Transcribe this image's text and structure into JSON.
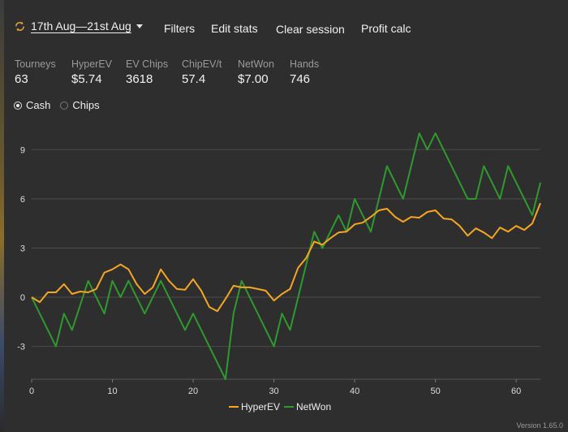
{
  "toolbar": {
    "date_range": "17th Aug—21st Aug",
    "filters": "Filters",
    "edit_stats": "Edit stats",
    "clear_session": "Clear session",
    "profit_calc": "Profit calc"
  },
  "stats": [
    {
      "name": "Tourneys",
      "value": "63"
    },
    {
      "name": "HyperEV",
      "value": "$5.74"
    },
    {
      "name": "EV Chips",
      "value": "3618"
    },
    {
      "name": "ChipEV/t",
      "value": "57.4"
    },
    {
      "name": "NetWon",
      "value": "$7.00"
    },
    {
      "name": "Hands",
      "value": "746"
    }
  ],
  "mode": {
    "options": [
      "Cash",
      "Chips"
    ],
    "selected": "Cash"
  },
  "version": "Version 1.65.0",
  "colors": {
    "hyperev": "#f5a623",
    "netwon": "#2e9a2e",
    "grid": "#4a4a4a",
    "axis_text": "#dddddd"
  },
  "chart_data": {
    "type": "line",
    "xlim": [
      0,
      63
    ],
    "ylim": [
      -5,
      10.5
    ],
    "xticks": [
      0,
      10,
      20,
      30,
      40,
      50,
      60
    ],
    "yticks": [
      -3,
      0,
      3,
      6,
      9
    ],
    "grid": true,
    "legend_position": "bottom-center",
    "series": [
      {
        "name": "HyperEV",
        "color": "#f5a623",
        "x": [
          0,
          1,
          2,
          3,
          4,
          5,
          6,
          7,
          8,
          9,
          10,
          11,
          12,
          13,
          14,
          15,
          16,
          17,
          18,
          19,
          20,
          21,
          22,
          23,
          24,
          25,
          26,
          27,
          28,
          29,
          30,
          31,
          32,
          33,
          34,
          35,
          36,
          37,
          38,
          39,
          40,
          41,
          42,
          43,
          44,
          45,
          46,
          47,
          48,
          49,
          50,
          51,
          52,
          53,
          54,
          55,
          56,
          57,
          58,
          59,
          60,
          61,
          62,
          63
        ],
        "values": [
          0,
          -0.3,
          0.3,
          0.3,
          0.8,
          0.2,
          0.35,
          0.3,
          0.5,
          1.5,
          1.7,
          2.0,
          1.7,
          0.8,
          0.2,
          0.6,
          1.7,
          1.0,
          0.5,
          0.45,
          1.1,
          0.4,
          -0.6,
          -0.85,
          -0.1,
          0.7,
          0.6,
          0.6,
          0.5,
          0.4,
          -0.2,
          0.2,
          0.5,
          1.8,
          2.4,
          3.4,
          3.2,
          3.6,
          3.95,
          4.0,
          4.45,
          4.55,
          4.9,
          5.3,
          5.4,
          4.9,
          4.6,
          4.9,
          4.85,
          5.2,
          5.3,
          4.8,
          4.75,
          4.35,
          3.75,
          4.2,
          3.95,
          3.6,
          4.25,
          4.0,
          4.35,
          4.1,
          4.5,
          5.74
        ]
      },
      {
        "name": "NetWon",
        "color": "#2e9a2e",
        "x": [
          0,
          3,
          4,
          5,
          7,
          9,
          10,
          11,
          12,
          14,
          16,
          19,
          20,
          24,
          25,
          26,
          30,
          31,
          32,
          35,
          36,
          38,
          39,
          40,
          41,
          42,
          43,
          44,
          46,
          48,
          49,
          50,
          54,
          55,
          56,
          57,
          58,
          59,
          60,
          61,
          62,
          63
        ],
        "values": [
          0,
          -3,
          -1,
          -2,
          1,
          -1,
          1,
          0,
          1,
          -1,
          1,
          -2,
          -1,
          -5,
          -1,
          1,
          -3,
          -1,
          -2,
          4,
          3,
          5,
          4,
          6,
          5,
          4,
          6,
          8,
          6,
          10,
          9,
          10,
          6,
          6,
          8,
          7,
          6,
          8,
          7,
          6,
          5,
          7
        ]
      }
    ]
  }
}
